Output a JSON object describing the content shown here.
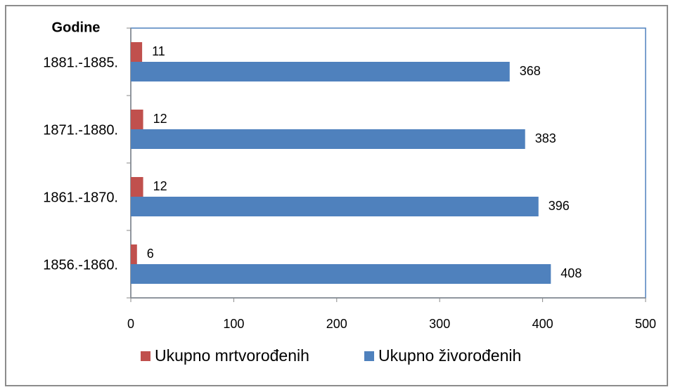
{
  "chart_data": {
    "type": "hbar",
    "ylabel": "Godine",
    "categories": [
      "1881.-1885.",
      "1871.-1880.",
      "1861.-1870.",
      "1856.-1860."
    ],
    "series": [
      {
        "name": "Ukupno mrtvorođenih",
        "color": "#c0504d",
        "values": [
          11,
          12,
          12,
          6
        ]
      },
      {
        "name": "Ukupno živorođenih",
        "color": "#4f81bd",
        "values": [
          368,
          383,
          396,
          408
        ]
      }
    ],
    "xlim": [
      0,
      500
    ],
    "xticks": [
      0,
      100,
      200,
      300,
      400,
      500
    ],
    "grid": false,
    "legend": "bottom",
    "data_labels": true
  }
}
